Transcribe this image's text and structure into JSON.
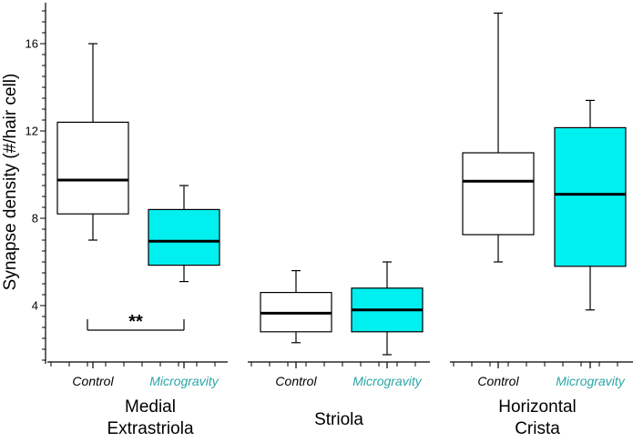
{
  "chart_data": {
    "type": "boxplot",
    "ylabel": "Synapse density (#/hair cell)",
    "ylim": [
      1.5,
      18
    ],
    "yticks": [
      4,
      8,
      12,
      16
    ],
    "minor_tick_step": 0.5,
    "colors": {
      "Control": "#ffffff",
      "Microgravity": "#00f0f0",
      "tick_label_microgravity": "#2aa6a6",
      "tick_label_control": "#000000"
    },
    "groups": [
      {
        "label_lines": [
          "Medial",
          "Extrastriola"
        ],
        "boxes": [
          {
            "category": "Control",
            "min": 7.0,
            "q1": 8.2,
            "median": 9.75,
            "q3": 12.4,
            "max": 16.0
          },
          {
            "category": "Microgravity",
            "min": 5.1,
            "q1": 5.85,
            "median": 6.95,
            "q3": 8.4,
            "max": 9.5
          }
        ],
        "annotation": {
          "text": "**",
          "y": 3.0
        }
      },
      {
        "label_lines": [
          "Striola"
        ],
        "boxes": [
          {
            "category": "Control",
            "min": 2.3,
            "q1": 2.8,
            "median": 3.65,
            "q3": 4.6,
            "max": 5.6
          },
          {
            "category": "Microgravity",
            "min": 1.75,
            "q1": 2.8,
            "median": 3.8,
            "q3": 4.8,
            "max": 6.0
          }
        ]
      },
      {
        "label_lines": [
          "Horizontal",
          "Crista"
        ],
        "boxes": [
          {
            "category": "Control",
            "min": 6.0,
            "q1": 7.25,
            "median": 9.7,
            "q3": 11.0,
            "max": 17.4
          },
          {
            "category": "Microgravity",
            "min": 3.8,
            "q1": 5.8,
            "median": 9.1,
            "q3": 12.15,
            "max": 13.4
          }
        ]
      }
    ]
  }
}
